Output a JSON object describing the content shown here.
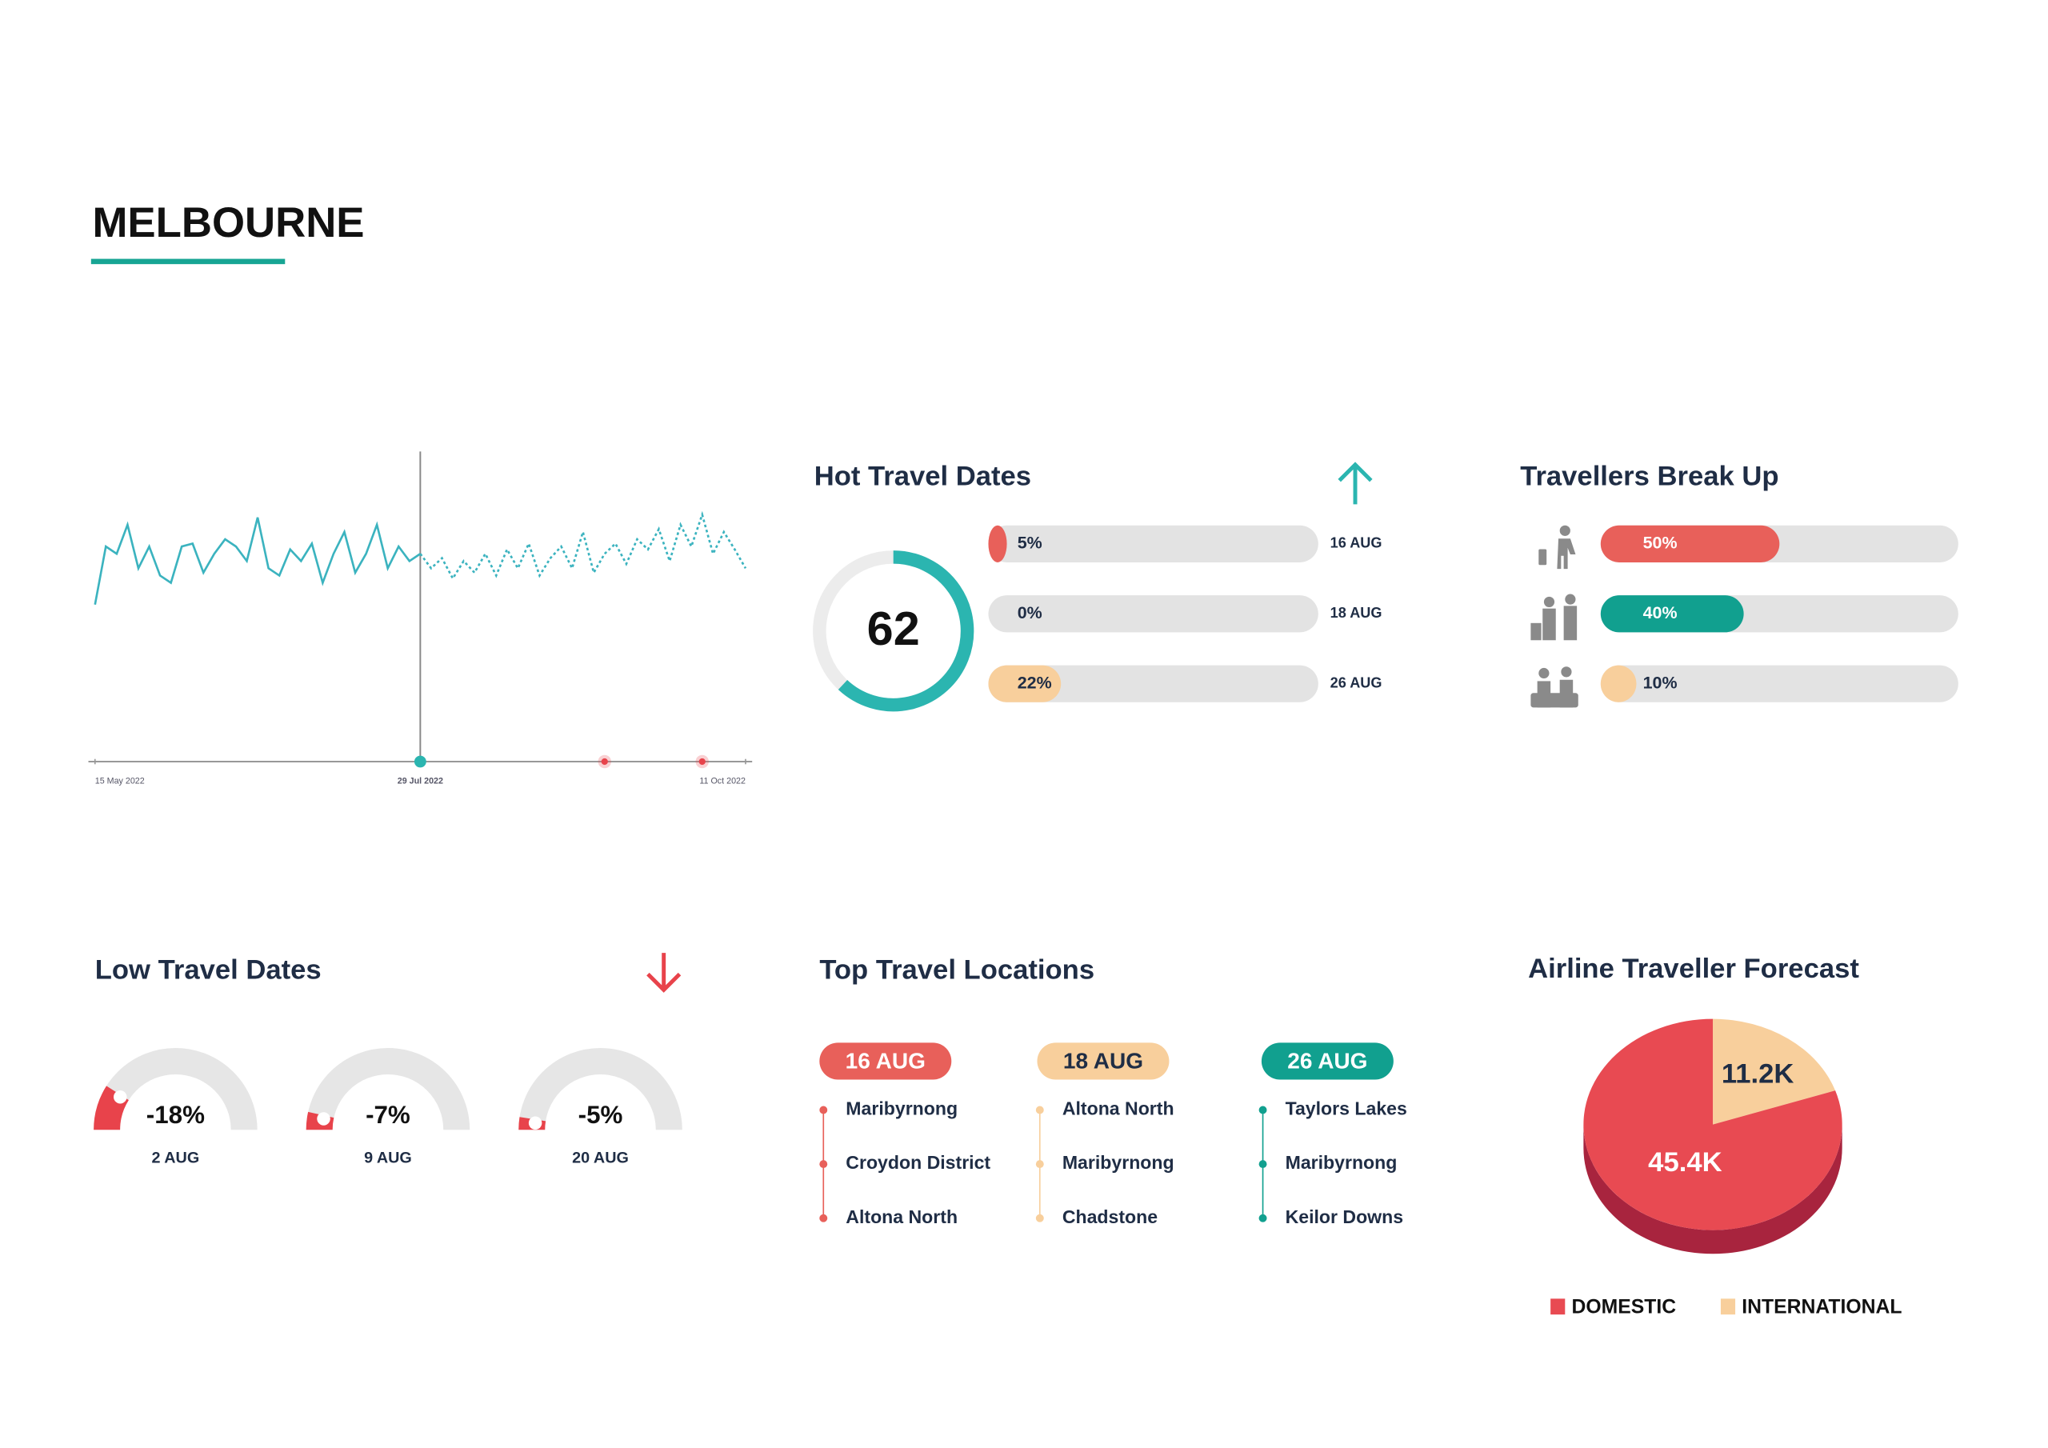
{
  "header": {
    "title": "MELBOURNE"
  },
  "trend": {
    "xlim": [
      0,
      60
    ],
    "ylim": [
      0,
      100
    ],
    "xticks": [
      {
        "value": 0,
        "label": "15 May 2022"
      },
      {
        "value": 30,
        "label": "29 Jul 2022"
      },
      {
        "value": 60,
        "label": "11 Oct 2022"
      }
    ],
    "series": [
      {
        "color": "#3bb3bf",
        "dashed": false,
        "values": [
          20,
          60,
          55,
          75,
          45,
          60,
          40,
          35,
          60,
          62,
          42,
          55,
          65,
          60,
          50,
          80,
          45,
          40,
          58,
          50,
          62,
          35,
          55,
          70,
          42,
          55,
          75,
          45,
          60,
          50,
          55
        ]
      },
      {
        "color": "#3bb3bf",
        "dashed": true,
        "values": [
          null,
          null,
          null,
          null,
          null,
          null,
          null,
          null,
          null,
          null,
          null,
          null,
          null,
          null,
          null,
          null,
          null,
          null,
          null,
          null,
          null,
          null,
          null,
          null,
          null,
          null,
          null,
          null,
          null,
          null,
          55,
          45,
          52,
          38,
          50,
          42,
          55,
          40,
          58,
          45,
          62,
          40,
          52,
          60,
          45,
          70,
          42,
          55,
          62,
          48,
          65,
          58,
          72,
          50,
          75,
          60,
          82,
          55,
          70,
          58,
          45
        ]
      }
    ],
    "markers": [
      47,
      56
    ],
    "marker_color": "#e8434b",
    "current_color": "#2bb5b0"
  },
  "hot_travel_dates": {
    "title": "Hot Travel Dates",
    "score": 62,
    "score_max": 100,
    "score_color": "#2bb5b0",
    "max": 100,
    "values": [
      5,
      0,
      22
    ],
    "value_labels": [
      "5%",
      "0%",
      "22%"
    ],
    "dates": [
      "16 AUG",
      "18 AUG",
      "26 AUG"
    ],
    "colors": [
      "#e8605a",
      "#e8605a",
      "#f8cf9c"
    ]
  },
  "travellers_break_up": {
    "title": "Travellers Break Up",
    "max": 100,
    "values": [
      50,
      40,
      10
    ],
    "value_labels": [
      "50%",
      "40%",
      "10%"
    ],
    "colors": [
      "#e8605a",
      "#11a08f",
      "#f8cf9c"
    ]
  },
  "low_travel_dates": {
    "title": "Low Travel Dates",
    "min": -100,
    "values": [
      -18,
      -7,
      -5
    ],
    "value_labels": [
      "-18%",
      "-7%",
      "-5%"
    ],
    "dates": [
      "2 AUG",
      "9 AUG",
      "20 AUG"
    ],
    "color": "#e8434b"
  },
  "top_travel_locations": {
    "title": "Top Travel Locations",
    "columns": [
      {
        "date": "16 AUG",
        "color": "#e8605a",
        "text_color": "#ffffff",
        "places": [
          "Maribyrnong",
          "Croydon District",
          "Altona North"
        ]
      },
      {
        "date": "18 AUG",
        "color": "#f8cf9c",
        "text_color": "#1f2d45",
        "places": [
          "Altona North",
          "Maribyrnong",
          "Chadstone"
        ]
      },
      {
        "date": "26 AUG",
        "color": "#11a08f",
        "text_color": "#ffffff",
        "places": [
          "Taylors Lakes",
          "Maribyrnong",
          "Keilor Downs"
        ]
      }
    ]
  },
  "airline_traveller_forecast": {
    "title": "Airline Traveller Forecast",
    "names": [
      "DOMESTIC",
      "INTERNATIONAL"
    ],
    "values": [
      45400,
      11200
    ],
    "value_labels": [
      "45.4K",
      "11.2K"
    ],
    "colors": [
      "#e84a52",
      "#f8cf9c"
    ],
    "side_color": "#a8243e"
  }
}
